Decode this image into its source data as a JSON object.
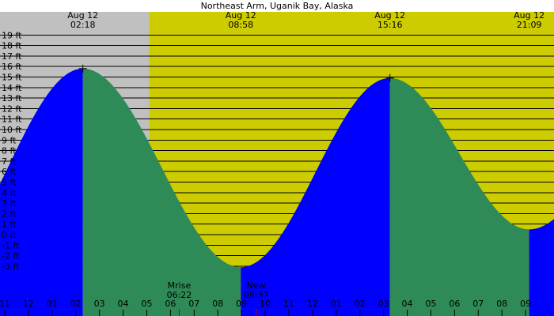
{
  "chart_data": {
    "type": "area",
    "title": "Northeast Arm, Uganik Bay, Alaska",
    "x_unit": "hour",
    "xlim": [
      -1.2,
      22.2
    ],
    "ylim": [
      -4.2,
      19.5
    ],
    "y_ticks": [
      -3,
      -2,
      -1,
      0,
      1,
      2,
      3,
      4,
      5,
      6,
      7,
      8,
      9,
      10,
      11,
      12,
      13,
      14,
      15,
      16,
      17,
      18,
      19
    ],
    "y_tick_suffix": " ft",
    "hour_labels": [
      {
        "h": -1,
        "label": "11"
      },
      {
        "h": 0,
        "label": "12"
      },
      {
        "h": 1,
        "label": "01"
      },
      {
        "h": 2,
        "label": "02"
      },
      {
        "h": 3,
        "label": "03"
      },
      {
        "h": 4,
        "label": "04"
      },
      {
        "h": 5,
        "label": "05"
      },
      {
        "h": 6,
        "label": "06"
      },
      {
        "h": 7,
        "label": "07"
      },
      {
        "h": 8,
        "label": "08"
      },
      {
        "h": 9,
        "label": "09"
      },
      {
        "h": 10,
        "label": "10"
      },
      {
        "h": 11,
        "label": "11"
      },
      {
        "h": 12,
        "label": "12"
      },
      {
        "h": 13,
        "label": "01"
      },
      {
        "h": 14,
        "label": "02"
      },
      {
        "h": 15,
        "label": "03"
      },
      {
        "h": 16,
        "label": "04"
      },
      {
        "h": 17,
        "label": "05"
      },
      {
        "h": 18,
        "label": "06"
      },
      {
        "h": 19,
        "label": "07"
      },
      {
        "h": 20,
        "label": "08"
      },
      {
        "h": 21,
        "label": "09"
      }
    ],
    "tide_extremes": [
      {
        "h": -4.05,
        "height": -3.1,
        "date": "",
        "time": ""
      },
      {
        "h": 2.3,
        "height": 15.8,
        "date": "Aug 12",
        "time": "02:18"
      },
      {
        "h": 8.97,
        "height": -3.1,
        "date": "Aug 12",
        "time": "08:58"
      },
      {
        "h": 15.27,
        "height": 14.9,
        "date": "Aug 12",
        "time": "15:16"
      },
      {
        "h": 21.15,
        "height": 0.5,
        "date": "Aug 12",
        "time": "21:09"
      },
      {
        "h": 27.5,
        "height": 15.5,
        "date": "",
        "time": ""
      }
    ],
    "daylight": {
      "start_h": 5.1,
      "end_h": 22.2
    },
    "moon_events": [
      {
        "h": 6.37,
        "label": "Mrise",
        "time": "06:22"
      },
      {
        "h": 9.62,
        "label": "New",
        "time": "09:37"
      }
    ],
    "colors": {
      "night": "#c0c0c0",
      "day": "#cccc00",
      "rising": "#0000ff",
      "falling": "#2e8b57",
      "grid": "#000000",
      "marker": "#c00000"
    }
  }
}
